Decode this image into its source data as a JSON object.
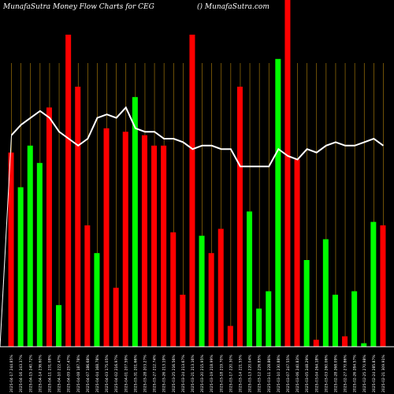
{
  "header": {
    "left": "MunafaSutra  Money Flow  Charts for CEG",
    "right": "() MunafaSutra.com"
  },
  "chart_data": {
    "type": "bar",
    "title": "Money Flow Charts for CEG",
    "bar_colors": {
      "up": "#00ff00",
      "down": "#ff0000",
      "line": "#ffffff",
      "grid": "#b8860b",
      "baseline": "#ffffff"
    },
    "ylim": [
      0,
      100
    ],
    "series": [
      {
        "name": "volume",
        "values": [
          56,
          46,
          58,
          53,
          69,
          12,
          90,
          75,
          35,
          27,
          63,
          17,
          62,
          72,
          61,
          58,
          58,
          33,
          15,
          90,
          32,
          27,
          34,
          6,
          75,
          39,
          11,
          16,
          83,
          100,
          54,
          25,
          2,
          31,
          15,
          3,
          16,
          1,
          36,
          35
        ]
      },
      {
        "name": "line",
        "values": [
          61,
          64,
          66,
          68,
          66,
          62,
          60,
          58,
          60,
          66,
          67,
          66,
          69,
          63,
          62,
          62,
          60,
          60,
          59,
          57,
          58,
          58,
          57,
          57,
          52,
          52,
          52,
          52,
          57,
          55,
          54,
          57,
          56,
          58,
          59,
          58,
          58,
          59,
          60,
          58
        ]
      }
    ],
    "directions": [
      "down",
      "up",
      "up",
      "up",
      "down",
      "up",
      "down",
      "down",
      "down",
      "up",
      "down",
      "down",
      "down",
      "up",
      "down",
      "down",
      "down",
      "down",
      "down",
      "down",
      "up",
      "down",
      "down",
      "down",
      "down",
      "up",
      "up",
      "up",
      "up",
      "down",
      "down",
      "up",
      "down",
      "up",
      "up",
      "down",
      "up",
      "up",
      "up",
      "down"
    ],
    "x_labels": [
      "2025-04-17 244.85%",
      "2025-04-16 243.37%",
      "2025-04-15 240.72%",
      "2025-04-14 236.60%",
      "2025-04-11 231.08%",
      "2025-04-10 222.47%",
      "2025-04-09 257.47%",
      "2025-04-08 187.78%",
      "2025-04-07 186.68%",
      "2025-04-04 168.78%",
      "2025-04-03 175.05%",
      "2025-04-02 216.97%",
      "2025-04-01 207.59%",
      "2025-03-31 201.66%",
      "2025-03-28 203.27%",
      "2025-03-27 212.74%",
      "2025-03-26 213.19%",
      "2025-03-25 216.56%",
      "2025-03-24 213.67%",
      "2025-03-21 213.16%",
      "2025-03-20 215.95%",
      "2025-03-19 218.99%",
      "2025-03-18 219.70%",
      "2025-03-17 220.30%",
      "2025-03-14 221.55%",
      "2025-03-13 220.04%",
      "2025-03-12 226.85%",
      "2025-03-11 228.86%",
      "2025-03-10 230.88%",
      "2025-03-07 247.55%",
      "2025-03-06 240.83%",
      "2025-03-05 248.29%",
      "2025-03-04 264.18%",
      "2025-03-03 260.06%",
      "2025-02-28 268.09%",
      "2025-02-27 270.86%",
      "2025-02-26 284.57%",
      "2025-02-25 270.98%",
      "2025-02-24 285.87%",
      "2025-02-21 309.91%"
    ]
  }
}
